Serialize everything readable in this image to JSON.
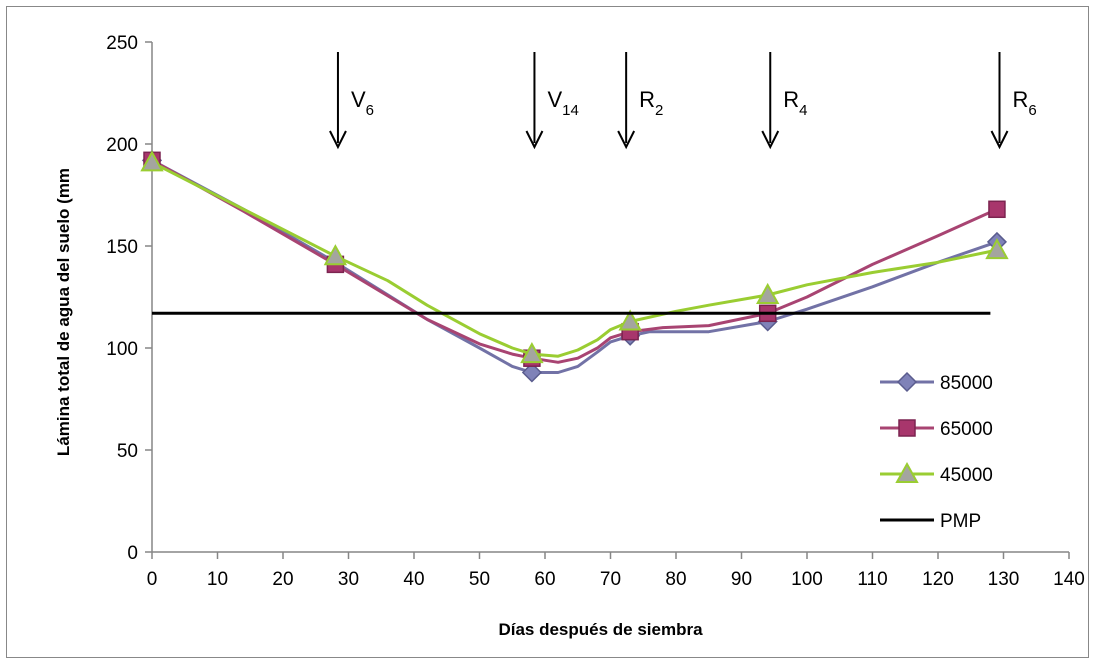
{
  "chart_data": {
    "type": "line",
    "xlabel": "Días después de siembra",
    "ylabel": "Lámina total de agua del suelo (mm",
    "xlim": [
      0,
      140
    ],
    "ylim": [
      0,
      250
    ],
    "xticks": [
      "0",
      "10",
      "20",
      "30",
      "40",
      "50",
      "60",
      "70",
      "80",
      "90",
      "100",
      "110",
      "120",
      "130",
      "140"
    ],
    "yticks": [
      "0",
      "50",
      "100",
      "150",
      "200",
      "250"
    ],
    "grid": false,
    "legend_position": "right",
    "series": [
      {
        "name": "85000",
        "color": "#7272a6",
        "marker": "diamond",
        "points": [
          [
            0,
            192
          ],
          [
            28,
            142
          ],
          [
            58,
            88
          ],
          [
            73,
            106
          ],
          [
            94,
            113
          ],
          [
            129,
            152
          ]
        ],
        "curve": [
          [
            0,
            192
          ],
          [
            14,
            168
          ],
          [
            28,
            142
          ],
          [
            42,
            114
          ],
          [
            50,
            100
          ],
          [
            55,
            91
          ],
          [
            58,
            88
          ],
          [
            62,
            88
          ],
          [
            65,
            91
          ],
          [
            68,
            98
          ],
          [
            70,
            103
          ],
          [
            73,
            106
          ],
          [
            76,
            108
          ],
          [
            85,
            108
          ],
          [
            94,
            113
          ],
          [
            100,
            119
          ],
          [
            110,
            130
          ],
          [
            120,
            142
          ],
          [
            129,
            152
          ]
        ]
      },
      {
        "name": "65000",
        "color": "#a84472",
        "marker": "square",
        "points": [
          [
            0,
            192
          ],
          [
            28,
            141
          ],
          [
            58,
            95
          ],
          [
            73,
            108
          ],
          [
            94,
            117
          ],
          [
            129,
            168
          ]
        ],
        "curve": [
          [
            0,
            192
          ],
          [
            14,
            167
          ],
          [
            28,
            141
          ],
          [
            42,
            114
          ],
          [
            50,
            102
          ],
          [
            55,
            97
          ],
          [
            58,
            95
          ],
          [
            62,
            93
          ],
          [
            65,
            95
          ],
          [
            68,
            100
          ],
          [
            70,
            105
          ],
          [
            73,
            108
          ],
          [
            78,
            110
          ],
          [
            85,
            111
          ],
          [
            94,
            117
          ],
          [
            100,
            125
          ],
          [
            110,
            141
          ],
          [
            120,
            155
          ],
          [
            129,
            168
          ]
        ]
      },
      {
        "name": "45000",
        "color": "#9acd32",
        "marker": "triangle",
        "points": [
          [
            0,
            191
          ],
          [
            28,
            145
          ],
          [
            58,
            97
          ],
          [
            73,
            113
          ],
          [
            94,
            126
          ],
          [
            129,
            148
          ]
        ],
        "curve": [
          [
            0,
            191
          ],
          [
            14,
            168
          ],
          [
            28,
            145
          ],
          [
            36,
            133
          ],
          [
            42,
            121
          ],
          [
            50,
            107
          ],
          [
            55,
            100
          ],
          [
            58,
            97
          ],
          [
            62,
            96
          ],
          [
            65,
            99
          ],
          [
            68,
            104
          ],
          [
            70,
            109
          ],
          [
            73,
            113
          ],
          [
            80,
            118
          ],
          [
            85,
            121
          ],
          [
            94,
            126
          ],
          [
            100,
            131
          ],
          [
            110,
            137
          ],
          [
            120,
            142
          ],
          [
            129,
            148
          ]
        ]
      },
      {
        "name": "PMP",
        "color": "#000000",
        "marker": "none",
        "points": [
          [
            0,
            117
          ],
          [
            128,
            117
          ]
        ],
        "curve": [
          [
            0,
            117
          ],
          [
            128,
            117
          ]
        ]
      }
    ],
    "annotations": [
      {
        "base": "V",
        "sub": "6",
        "x": 29
      },
      {
        "base": "V",
        "sub": "14",
        "x": 59
      },
      {
        "base": "R",
        "sub": "2",
        "x": 73
      },
      {
        "base": "R",
        "sub": "4",
        "x": 95
      },
      {
        "base": "R",
        "sub": "6",
        "x": 130
      }
    ]
  }
}
